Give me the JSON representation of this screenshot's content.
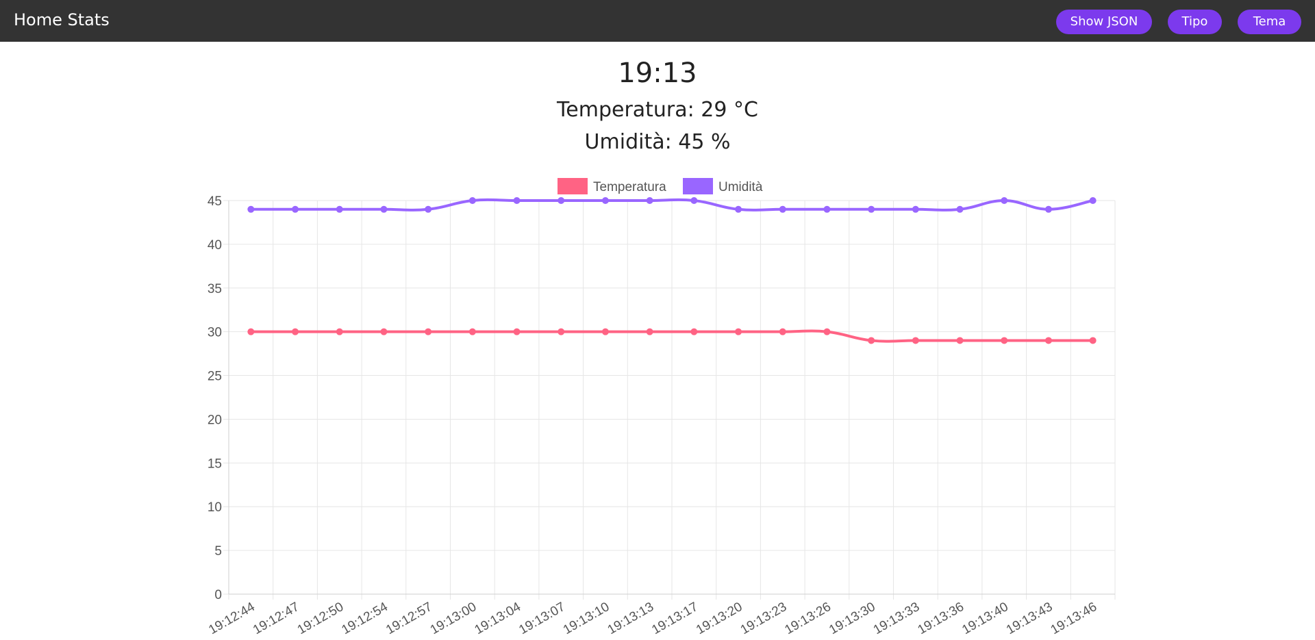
{
  "navbar": {
    "title": "Home Stats",
    "buttons": {
      "show_json": "Show JSON",
      "tipo": "Tipo",
      "tema": "Tema"
    },
    "bg_color": "#333333",
    "button_color": "#7c3aed"
  },
  "summary": {
    "time": "19:13",
    "temperature": "Temperatura: 29 °C",
    "humidity": "Umidità: 45 %"
  },
  "chart_data": {
    "type": "line",
    "title": "",
    "xlabel": "",
    "ylabel": "",
    "ylim": [
      0,
      45
    ],
    "yticks": [
      0,
      5,
      10,
      15,
      20,
      25,
      30,
      35,
      40,
      45
    ],
    "grid": true,
    "legend_position": "top-center",
    "categories": [
      "19:12:44",
      "19:12:47",
      "19:12:50",
      "19:12:54",
      "19:12:57",
      "19:13:00",
      "19:13:04",
      "19:13:07",
      "19:13:10",
      "19:13:13",
      "19:13:17",
      "19:13:20",
      "19:13:23",
      "19:13:26",
      "19:13:30",
      "19:13:33",
      "19:13:36",
      "19:13:40",
      "19:13:43",
      "19:13:46"
    ],
    "series": [
      {
        "name": "Temperatura",
        "color": "#ff6384",
        "values": [
          30,
          30,
          30,
          30,
          30,
          30,
          30,
          30,
          30,
          30,
          30,
          30,
          30,
          30,
          29,
          29,
          29,
          29,
          29,
          29
        ]
      },
      {
        "name": "Umidità",
        "color": "#9966ff",
        "values": [
          44,
          44,
          44,
          44,
          44,
          45,
          45,
          45,
          45,
          45,
          45,
          44,
          44,
          44,
          44,
          44,
          44,
          45,
          44,
          45
        ]
      }
    ]
  }
}
